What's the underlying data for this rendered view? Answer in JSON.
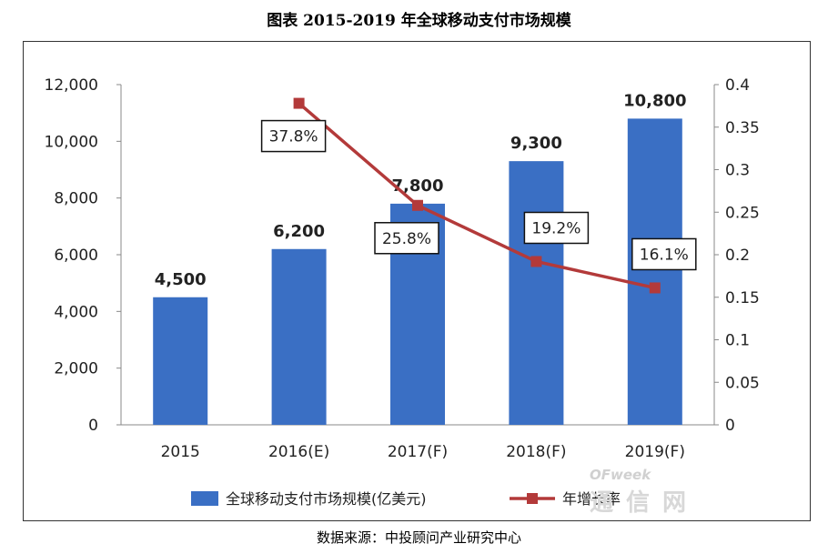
{
  "title": "图表    2015-2019 年全球移动支付市场规模",
  "source": "数据来源：中投顾问产业研究中心",
  "watermark": {
    "brand": "OFweek",
    "cn": "通信网"
  },
  "chart_data": {
    "type": "bar",
    "categories": [
      "2015",
      "2016(E)",
      "2017(F)",
      "2018(F)",
      "2019(F)"
    ],
    "series": [
      {
        "name": "全球移动支付市场规模(亿美元)",
        "type": "bar",
        "axis": "left",
        "values": [
          4500,
          6200,
          7800,
          9300,
          10800
        ],
        "labels": [
          "4,500",
          "6,200",
          "7,800",
          "9,300",
          "10,800"
        ],
        "color": "#3a6fc4"
      },
      {
        "name": "年增长率",
        "type": "line",
        "axis": "right",
        "values": [
          null,
          0.378,
          0.258,
          0.192,
          0.161
        ],
        "labels": [
          "",
          "37.8%",
          "25.8%",
          "19.2%",
          "16.1%"
        ],
        "color": "#b33a3a"
      }
    ],
    "y_left": {
      "min": 0,
      "max": 12000,
      "ticks": [
        "0",
        "2,000",
        "4,000",
        "6,000",
        "8,000",
        "10,000",
        "12,000"
      ]
    },
    "y_right": {
      "min": 0,
      "max": 0.4,
      "ticks": [
        "0",
        "0.05",
        "0.1",
        "0.15",
        "0.2",
        "0.25",
        "0.3",
        "0.35",
        "0.4"
      ]
    },
    "grid": false,
    "legend": "bottom"
  }
}
